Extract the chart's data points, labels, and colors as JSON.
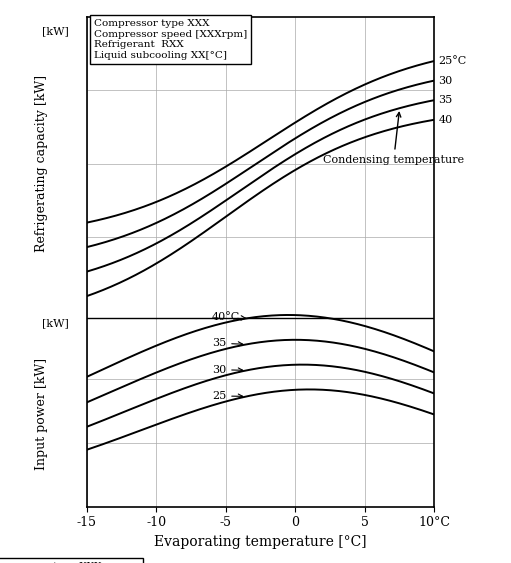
{
  "x_range": [
    -15,
    10
  ],
  "x_ticks": [
    -15,
    -10,
    -5,
    0,
    5,
    10
  ],
  "x_label": "Evaporating temperature [°C]",
  "y_label_top": "Refrigerating capacity [kW]",
  "y_label_bottom": "Input power [kW]",
  "box_text": "Compressor type XXX\nCompressor speed [XXXrpm]\nRefrigerant  RXX\nLiquid subcooling XX[°C]",
  "condensing_temp_label": "Condensing temperature",
  "background_color": "#ffffff",
  "line_color": "#000000",
  "grid_color": "#aaaaaa",
  "top_labels": [
    "25°C",
    "30",
    "35",
    "40"
  ],
  "bottom_labels": [
    "40°C",
    "35",
    "30",
    "25"
  ]
}
